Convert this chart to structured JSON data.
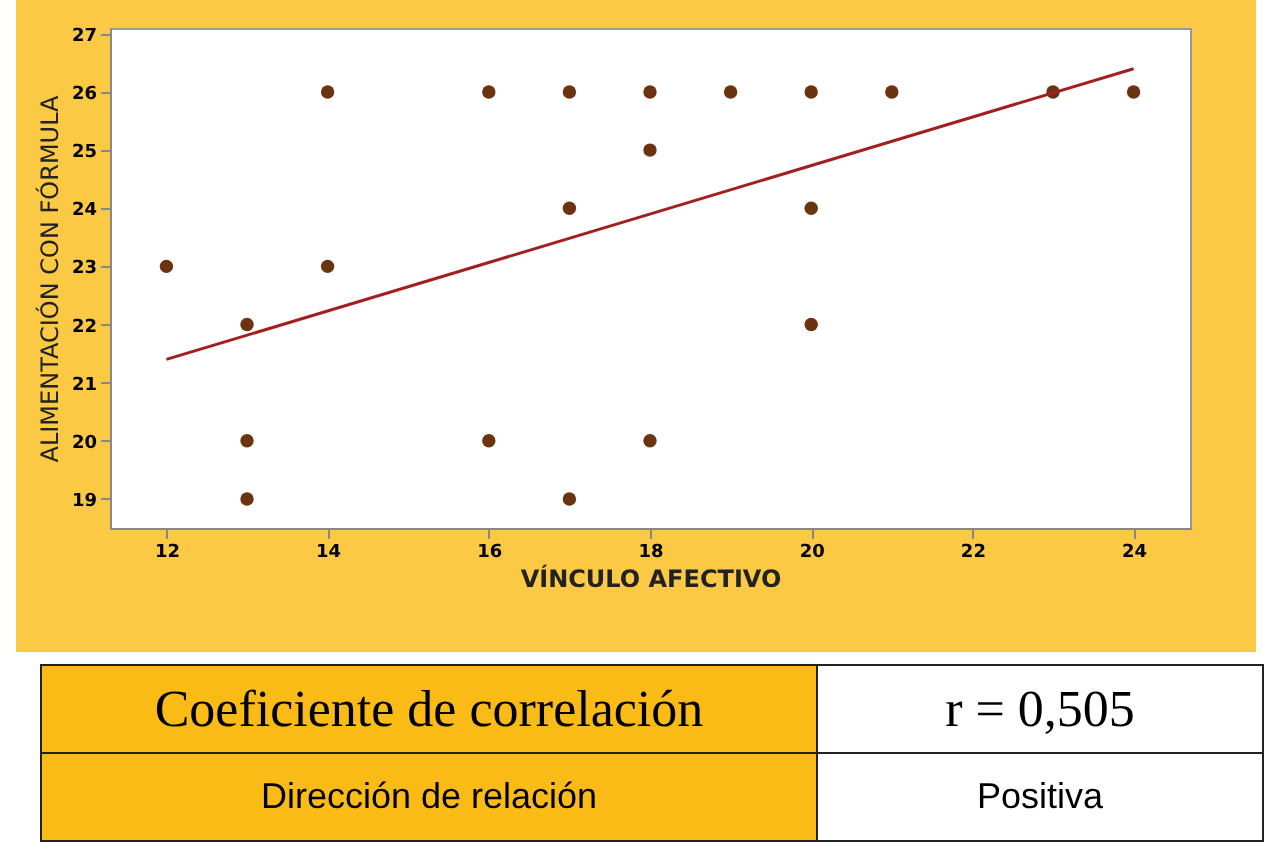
{
  "chart_data": {
    "type": "scatter",
    "xlabel": "VÍNCULO AFECTIVO",
    "ylabel": "ALIMENTACIÓN CON FÓRMULA",
    "xlim": [
      11.3,
      24.7
    ],
    "xticks": [
      12,
      14,
      16,
      18,
      20,
      22,
      24
    ],
    "ylim": [
      18.5,
      27.1
    ],
    "yticks": [
      19,
      20,
      21,
      22,
      23,
      24,
      25,
      26,
      27
    ],
    "grid": false,
    "series": [
      {
        "marker": "circle",
        "color": "#6b3410",
        "x": [
          12,
          13,
          13,
          13,
          14,
          14,
          16,
          16,
          17,
          17,
          17,
          18,
          18,
          18,
          19,
          20,
          20,
          20,
          21,
          23,
          24
        ],
        "values": [
          23,
          22,
          20,
          19,
          26,
          23,
          26,
          20,
          26,
          24,
          19,
          26,
          25,
          20,
          26,
          26,
          24,
          22,
          26,
          26,
          26
        ]
      },
      {
        "type": "line",
        "color": "#a31f1f",
        "line_style": "solid",
        "x": [
          12,
          24
        ],
        "values": [
          21.4,
          26.4
        ]
      }
    ],
    "annotations": [
      "Coeficiente de correlación",
      "r = 0,505",
      "Dirección de relación",
      "Positiva"
    ]
  }
}
